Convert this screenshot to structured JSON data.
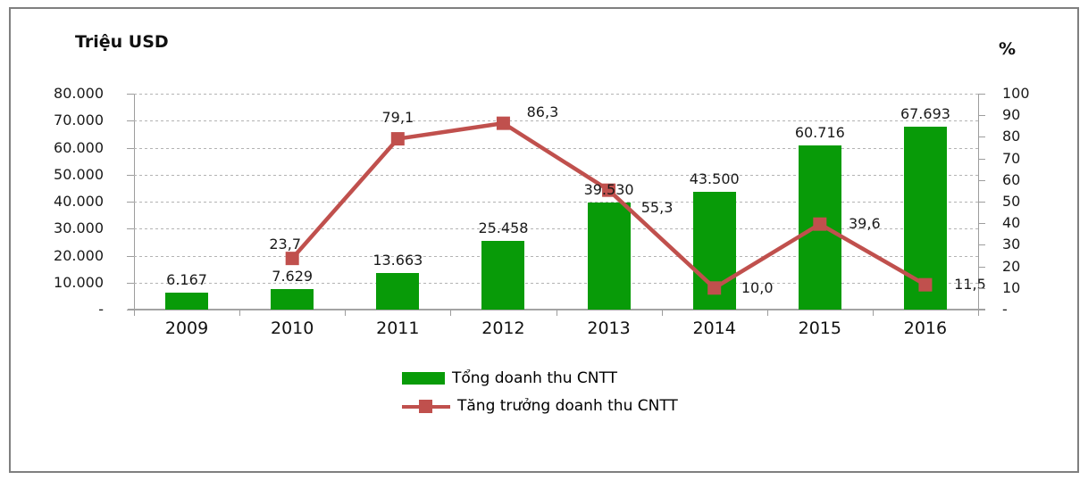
{
  "chart_data": {
    "type": "combo-bar-line",
    "categories": [
      "2009",
      "2010",
      "2011",
      "2012",
      "2013",
      "2014",
      "2015",
      "2016"
    ],
    "series": [
      {
        "name": "Tổng doanh thu CNTT",
        "type": "bar",
        "axis": "left",
        "color": "#089b08",
        "values": [
          6167,
          7629,
          13663,
          25458,
          39530,
          43500,
          60716,
          67693
        ],
        "labels": [
          "6.167",
          "7.629",
          "13.663",
          "25.458",
          "39.530",
          "43.500",
          "60.716",
          "67.693"
        ]
      },
      {
        "name": "Tăng trưởng doanh thu CNTT",
        "type": "line",
        "axis": "right",
        "color": "#c0504d",
        "values": [
          null,
          23.7,
          79.1,
          86.3,
          55.3,
          10.0,
          39.6,
          11.5
        ],
        "labels": [
          null,
          "23,7",
          "79,1",
          "86,3",
          "55,3",
          "10,0",
          "39,6",
          "11,5"
        ]
      }
    ],
    "left_axis": {
      "title": "Triệu USD",
      "min": 0,
      "max": 80000,
      "ticks": [
        "80.000",
        "70.000",
        "60.000",
        "50.000",
        "40.000",
        "30.000",
        "20.000",
        "10.000",
        "-"
      ]
    },
    "right_axis": {
      "title": "%",
      "min": 0,
      "max": 100,
      "ticks": [
        "100",
        "90",
        "80",
        "70",
        "60",
        "50",
        "40",
        "30",
        "20",
        "10",
        "-"
      ]
    },
    "grid": true,
    "gridline_style": "dashed",
    "legend_position": "bottom"
  }
}
